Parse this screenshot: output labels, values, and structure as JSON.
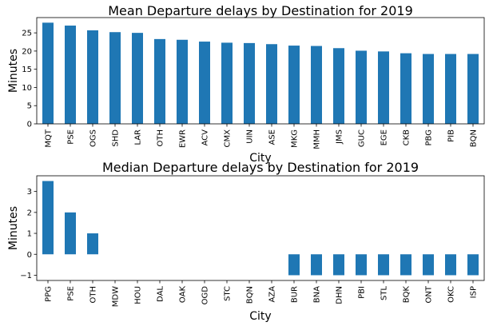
{
  "chart_data": [
    {
      "type": "bar",
      "title": "Mean Departure delays by Destination for 2019",
      "xlabel": "City",
      "ylabel": "Minutes",
      "categories": [
        "MQT",
        "PSE",
        "OGS",
        "SHD",
        "LAR",
        "OTH",
        "EWR",
        "ACV",
        "CMX",
        "UIN",
        "ASE",
        "MKG",
        "MMH",
        "JMS",
        "GUC",
        "EGE",
        "CKB",
        "PBG",
        "PIB",
        "BQN"
      ],
      "values": [
        27.8,
        27.0,
        25.7,
        25.2,
        25.0,
        23.3,
        23.1,
        22.6,
        22.3,
        22.2,
        21.9,
        21.5,
        21.4,
        20.8,
        20.1,
        19.9,
        19.4,
        19.2,
        19.2,
        19.2
      ],
      "ylim": [
        0,
        29.2
      ],
      "yticks": [
        0,
        5,
        10,
        15,
        20,
        25
      ],
      "bar_color": "#1f77b4",
      "grid": false
    },
    {
      "type": "bar",
      "title": "Median Departure delays by Destination for 2019",
      "xlabel": "City",
      "ylabel": "Minutes",
      "categories": [
        "PPG",
        "PSE",
        "OTH",
        "MDW",
        "HOU",
        "DAL",
        "OAK",
        "OGD",
        "STC",
        "BQN",
        "AZA",
        "BUR",
        "BNA",
        "DHN",
        "PBI",
        "STL",
        "BQK",
        "ONT",
        "OKC",
        "ISP"
      ],
      "values": [
        3.5,
        2.0,
        1.0,
        0,
        0,
        0,
        0,
        0,
        0,
        0,
        0,
        -1,
        -1,
        -1,
        -1,
        -1,
        -1,
        -1,
        -1,
        -1
      ],
      "ylim": [
        -1.25,
        3.75
      ],
      "yticks": [
        -1,
        0,
        1,
        2,
        3
      ],
      "bar_color": "#1f77b4",
      "grid": false
    }
  ]
}
